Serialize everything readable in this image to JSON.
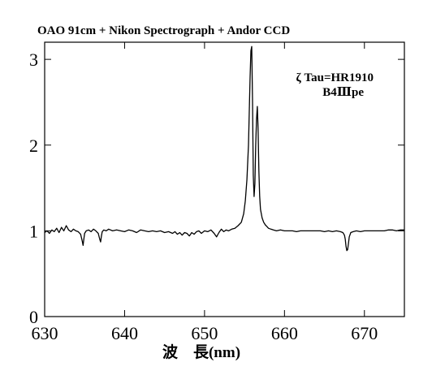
{
  "chart_data": {
    "type": "line",
    "title": "OAO 91cm + Nikon Spectrograph + Andor CCD",
    "xlabel": "波　長(nm)",
    "ylabel": "",
    "xlim": [
      630,
      675
    ],
    "ylim": [
      0,
      3.2
    ],
    "xticks": [
      630,
      640,
      650,
      660,
      670
    ],
    "yticks": [
      0,
      1,
      2,
      3
    ],
    "grid": false,
    "annotations": [
      "ζ Tau=HR1910",
      "B4Ⅲpe"
    ],
    "series": [
      {
        "x": [
          630.0,
          630.3,
          630.6,
          630.9,
          631.2,
          631.5,
          631.8,
          632.1,
          632.4,
          632.7,
          633.0,
          633.3,
          633.6,
          633.9,
          634.2,
          634.5,
          634.7,
          634.8,
          634.9,
          635.0,
          635.2,
          635.5,
          635.8,
          636.1,
          636.4,
          636.7,
          636.9,
          637.0,
          637.1,
          637.2,
          637.4,
          637.7,
          638.0,
          638.5,
          639.0,
          639.5,
          640.0,
          640.5,
          641.0,
          641.5,
          642.0,
          642.5,
          643.0,
          643.5,
          644.0,
          644.5,
          645.0,
          645.5,
          646.0,
          646.3,
          646.6,
          646.9,
          647.2,
          647.5,
          647.8,
          648.1,
          648.4,
          648.7,
          649.0,
          649.3,
          649.6,
          650.0,
          650.4,
          650.8,
          651.2,
          651.5,
          651.8,
          652.1,
          652.4,
          652.7,
          653.0,
          653.4,
          653.8,
          654.2,
          654.6,
          654.9,
          655.1,
          655.3,
          655.5,
          655.6,
          655.7,
          655.8,
          655.9,
          656.0,
          656.1,
          656.2,
          656.3,
          656.4,
          656.5,
          656.6,
          656.7,
          656.8,
          656.9,
          657.0,
          657.2,
          657.4,
          657.6,
          657.8,
          658.0,
          658.3,
          658.6,
          659.0,
          659.5,
          660.0,
          660.5,
          661.0,
          661.5,
          662.0,
          662.5,
          663.0,
          663.5,
          664.0,
          664.5,
          665.0,
          665.5,
          666.0,
          666.5,
          667.0,
          667.3,
          667.5,
          667.6,
          667.7,
          667.8,
          667.9,
          668.0,
          668.1,
          668.3,
          668.6,
          669.0,
          669.5,
          670.0,
          670.5,
          671.0,
          671.5,
          672.0,
          672.5,
          673.0,
          673.5,
          674.0,
          674.5,
          675.0
        ],
        "values": [
          0.98,
          1.0,
          0.97,
          1.01,
          0.99,
          1.03,
          0.98,
          1.04,
          1.0,
          1.06,
          1.01,
          0.99,
          1.02,
          1.0,
          0.99,
          0.96,
          0.88,
          0.83,
          0.9,
          0.97,
          1.0,
          1.01,
          0.99,
          1.02,
          1.0,
          0.97,
          0.9,
          0.87,
          0.94,
          0.99,
          1.01,
          1.0,
          1.02,
          1.0,
          1.01,
          1.0,
          0.99,
          1.01,
          1.0,
          0.98,
          1.01,
          1.0,
          0.99,
          1.0,
          0.99,
          1.0,
          0.98,
          0.99,
          0.97,
          0.99,
          0.96,
          0.98,
          0.95,
          0.98,
          0.97,
          0.94,
          0.98,
          0.96,
          0.99,
          1.0,
          0.97,
          1.0,
          0.99,
          1.01,
          0.97,
          0.93,
          0.98,
          1.02,
          0.99,
          1.01,
          1.0,
          1.02,
          1.03,
          1.06,
          1.1,
          1.2,
          1.35,
          1.6,
          2.0,
          2.4,
          2.8,
          3.1,
          3.15,
          2.5,
          1.65,
          1.4,
          1.55,
          2.0,
          2.3,
          2.45,
          2.2,
          1.7,
          1.4,
          1.25,
          1.15,
          1.1,
          1.07,
          1.05,
          1.03,
          1.02,
          1.01,
          1.0,
          1.01,
          1.0,
          1.0,
          1.0,
          0.99,
          1.0,
          1.0,
          1.0,
          1.0,
          1.0,
          1.0,
          0.99,
          1.0,
          0.99,
          1.0,
          0.99,
          0.98,
          0.95,
          0.9,
          0.82,
          0.77,
          0.78,
          0.85,
          0.93,
          0.98,
          0.99,
          1.0,
          0.99,
          1.0,
          1.0,
          1.0,
          1.0,
          1.0,
          1.0,
          1.01,
          1.01,
          1.0,
          1.01,
          1.01
        ]
      }
    ]
  }
}
